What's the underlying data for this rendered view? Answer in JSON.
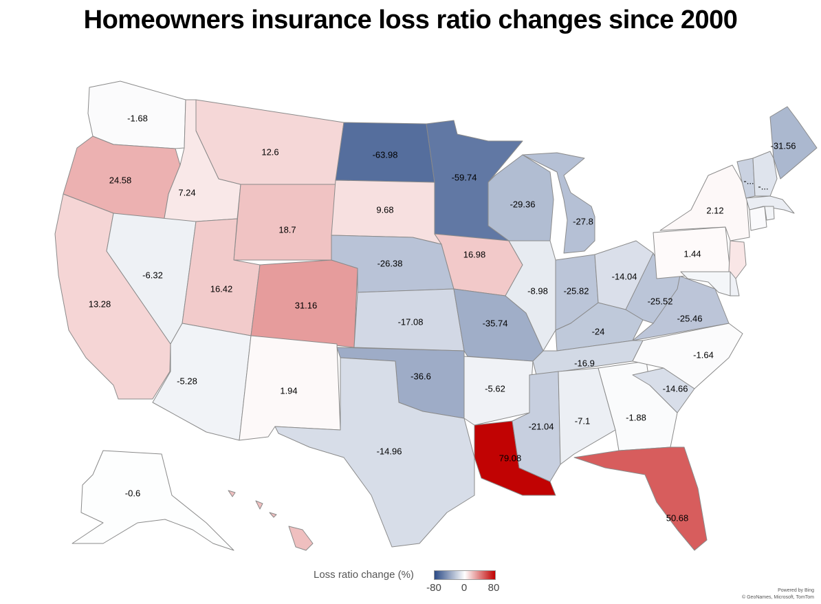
{
  "title": "Homeowners insurance loss ratio changes since 2000",
  "legend": {
    "title": "Loss ratio change (%)",
    "min_label": "-80",
    "mid_label": "0",
    "max_label": "80",
    "min": -80,
    "mid": 0,
    "max": 80,
    "colors": {
      "low": "#2b4a85",
      "mid": "#ffffff",
      "high": "#c00000"
    }
  },
  "credits": {
    "line1": "Powered by Bing",
    "line2": "© GeoNames, Microsoft, TomTom"
  },
  "states": [
    {
      "id": "WA",
      "value": -1.68,
      "label": "-1.68"
    },
    {
      "id": "OR",
      "value": 24.58,
      "label": "24.58"
    },
    {
      "id": "CA",
      "value": 13.28,
      "label": "13.28"
    },
    {
      "id": "ID",
      "value": 7.24,
      "label": "7.24"
    },
    {
      "id": "NV",
      "value": -6.32,
      "label": "-6.32"
    },
    {
      "id": "MT",
      "value": 12.6,
      "label": "12.6"
    },
    {
      "id": "WY",
      "value": 18.7,
      "label": "18.7"
    },
    {
      "id": "UT",
      "value": 16.42,
      "label": "16.42"
    },
    {
      "id": "AZ",
      "value": -5.28,
      "label": "-5.28"
    },
    {
      "id": "CO",
      "value": 31.16,
      "label": "31.16"
    },
    {
      "id": "NM",
      "value": 1.94,
      "label": "1.94"
    },
    {
      "id": "ND",
      "value": -63.98,
      "label": "-63.98"
    },
    {
      "id": "SD",
      "value": 9.68,
      "label": "9.68"
    },
    {
      "id": "NE",
      "value": -26.38,
      "label": "-26.38"
    },
    {
      "id": "KS",
      "value": -17.08,
      "label": "-17.08"
    },
    {
      "id": "OK",
      "value": -36.6,
      "label": "-36.6"
    },
    {
      "id": "TX",
      "value": -14.96,
      "label": "-14.96"
    },
    {
      "id": "MN",
      "value": -59.74,
      "label": "-59.74"
    },
    {
      "id": "IA",
      "value": 16.98,
      "label": "16.98"
    },
    {
      "id": "MO",
      "value": -35.74,
      "label": "-35.74"
    },
    {
      "id": "AR",
      "value": -5.62,
      "label": "-5.62"
    },
    {
      "id": "LA",
      "value": 79.08,
      "label": "79.08"
    },
    {
      "id": "WI",
      "value": -29.36,
      "label": "-29.36"
    },
    {
      "id": "IL",
      "value": -8.98,
      "label": "-8.98"
    },
    {
      "id": "MI",
      "value": -27.8,
      "label": "-27.8"
    },
    {
      "id": "IN",
      "value": -25.82,
      "label": "-25.82"
    },
    {
      "id": "OH",
      "value": -14.04,
      "label": "-14.04"
    },
    {
      "id": "KY",
      "value": -24,
      "label": "-24"
    },
    {
      "id": "TN",
      "value": -16.9,
      "label": "-16.9"
    },
    {
      "id": "MS",
      "value": -21.04,
      "label": "-21.04"
    },
    {
      "id": "AL",
      "value": -7.1,
      "label": "-7.1"
    },
    {
      "id": "GA",
      "value": -1.88,
      "label": "-1.88"
    },
    {
      "id": "FL",
      "value": 50.68,
      "label": "50.68"
    },
    {
      "id": "SC",
      "value": -14.66,
      "label": "-14.66"
    },
    {
      "id": "NC",
      "value": -1.64,
      "label": "-1.64"
    },
    {
      "id": "VA",
      "value": -25.46,
      "label": "-25.46"
    },
    {
      "id": "WV",
      "value": -25.52,
      "label": "-25.52"
    },
    {
      "id": "PA",
      "value": 1.44,
      "label": "1.44"
    },
    {
      "id": "NY",
      "value": 2.12,
      "label": "2.12"
    },
    {
      "id": "ME",
      "value": -31.56,
      "label": "-31.56"
    },
    {
      "id": "VT",
      "value": -20,
      "label": "-..."
    },
    {
      "id": "NH",
      "value": -12,
      "label": "-..."
    },
    {
      "id": "MA",
      "value": -8,
      "label": ""
    },
    {
      "id": "CT",
      "value": -2,
      "label": ""
    },
    {
      "id": "RI",
      "value": -5,
      "label": ""
    },
    {
      "id": "NJ",
      "value": 8,
      "label": ""
    },
    {
      "id": "DE",
      "value": -6,
      "label": ""
    },
    {
      "id": "MD",
      "value": -4,
      "label": ""
    },
    {
      "id": "AK",
      "value": -0.6,
      "label": "-0.6"
    },
    {
      "id": "HI",
      "value": 20,
      "label": ""
    }
  ]
}
